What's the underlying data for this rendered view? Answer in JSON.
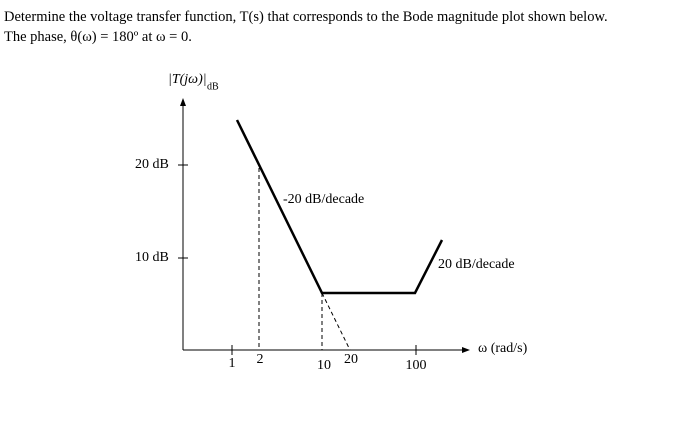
{
  "question": {
    "lines": [
      "Determine the voltage transfer function, T(s) that corresponds to the Bode magnitude plot shown below.",
      "The phase, θ(ω) = 180º at ω = 0."
    ]
  },
  "plot": {
    "y_axis_label": "|T(jω)|",
    "y_axis_label_sub": "dB",
    "y_ticks": [
      "20 dB",
      "10 dB"
    ],
    "x_ticks": [
      "1",
      "2",
      "10",
      "20",
      "100"
    ],
    "x_axis_label": "ω (rad/s)",
    "annotations": [
      "-20 dB/decade",
      "20 dB/decade"
    ]
  }
}
